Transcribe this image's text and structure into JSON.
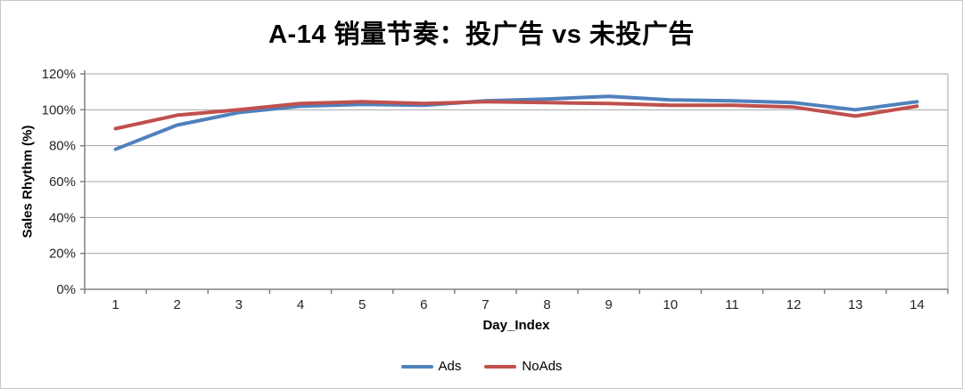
{
  "chart_data": {
    "type": "line",
    "title": "A-14 销量节奏：投广告 vs 未投广告",
    "xlabel": "Day_Index",
    "ylabel": "Sales Rhythm (%)",
    "categories": [
      "1",
      "2",
      "3",
      "4",
      "5",
      "6",
      "7",
      "8",
      "9",
      "10",
      "11",
      "12",
      "13",
      "14"
    ],
    "series": [
      {
        "name": "Ads",
        "color": "#4F81BD",
        "values": [
          78,
          91.5,
          98.5,
          102,
          103,
          102.5,
          105,
          106,
          107.5,
          105.5,
          105,
          104,
          100,
          104.5
        ]
      },
      {
        "name": "NoAds",
        "color": "#C0504D",
        "values": [
          89.5,
          97,
          100,
          103.5,
          104.5,
          103.5,
          104.5,
          104,
          103.5,
          102.5,
          102.5,
          101.5,
          96.5,
          102
        ]
      }
    ],
    "ylim": [
      0,
      120
    ],
    "y_tick_step": 20,
    "y_tick_labels": [
      "0%",
      "20%",
      "40%",
      "60%",
      "80%",
      "100%",
      "120%"
    ],
    "grid": true,
    "legend_position": "bottom"
  }
}
